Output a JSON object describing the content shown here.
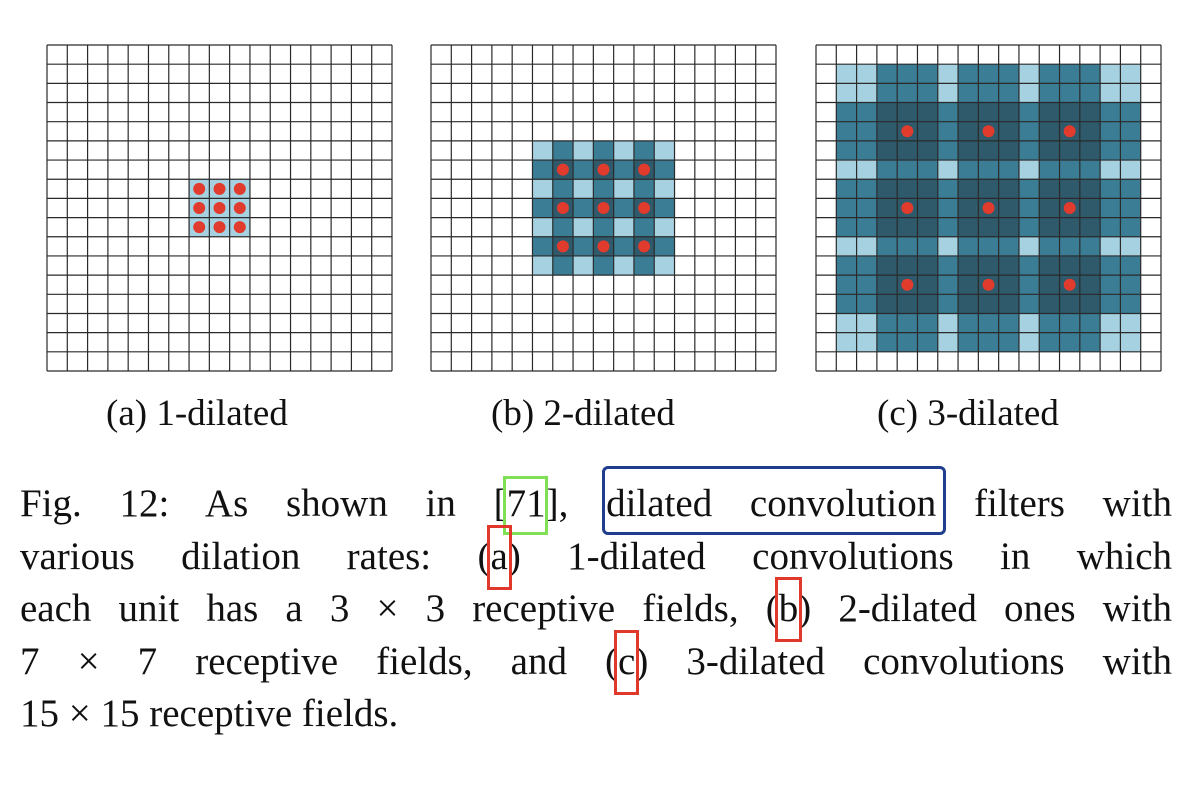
{
  "subfigures": [
    {
      "label": "(a) 1-dilated",
      "dilation": 1
    },
    {
      "label": "(b) 2-dilated",
      "dilation": 2
    },
    {
      "label": "(c) 3-dilated",
      "dilation": 3
    }
  ],
  "grid": {
    "rows": 17,
    "cols": 17
  },
  "colors": {
    "light_fill": "#a6d1e1",
    "mid_fill": "#3b7d95",
    "dark_fill": "#2e5a6b",
    "dot": "#e03b2c",
    "grid_line": "#2a2a2a",
    "highlight_green": "#7ee052",
    "highlight_blue": "#1f3f8e",
    "highlight_red": "#e0392b"
  },
  "caption": {
    "line1_a": "Fig. 12: As shown in [",
    "ref": "71",
    "line1_b": "], ",
    "term": "dilated convolution",
    "line1_c": " filters with",
    "line2_a": "various dilation rates: (",
    "a": "a",
    "line2_b": ") 1-dilated convolutions in which",
    "line3_a": "each unit has a 3 × 3 receptive fields, (",
    "b": "b",
    "line3_b": ") 2-dilated ones with",
    "line4_a": "7 × 7 receptive fields, and (",
    "c": "c",
    "line4_b": ") 3-dilated convolutions with",
    "line5": "15 × 15 receptive fields."
  }
}
